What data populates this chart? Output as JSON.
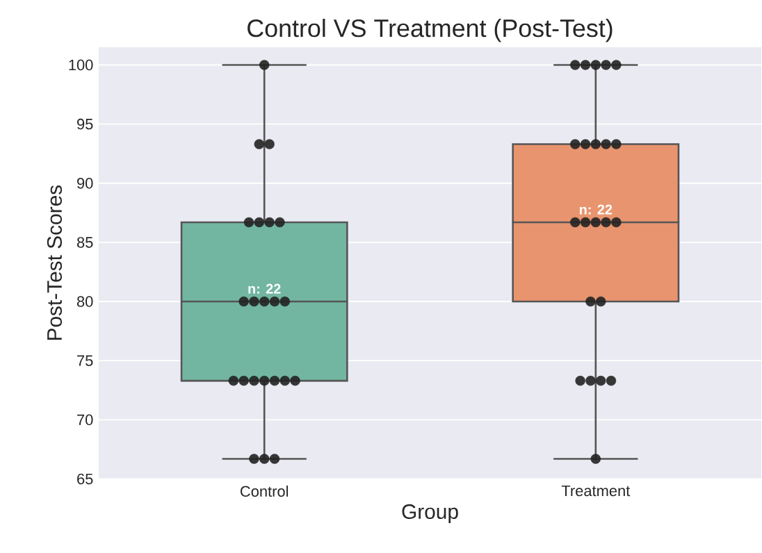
{
  "chart_data": {
    "type": "box",
    "title": "Control VS Treatment (Post-Test)",
    "xlabel": "Group",
    "ylabel": "Post-Test Scores",
    "categories": [
      "Control",
      "Treatment"
    ],
    "colors": [
      "#72b6a1",
      "#e8956f"
    ],
    "boxes": [
      {
        "low": 66.7,
        "q1": 73.3,
        "median": 80,
        "q3": 86.7,
        "high": 100
      },
      {
        "low": 66.7,
        "q1": 80,
        "median": 86.7,
        "q3": 93.3,
        "high": 100
      }
    ],
    "series": [
      {
        "type": "scatter",
        "color": "#222222",
        "x": [
          "Control",
          "Control",
          "Control",
          "Control",
          "Control",
          "Control",
          "Control",
          "Control",
          "Control",
          "Control",
          "Control",
          "Control",
          "Control",
          "Control",
          "Control",
          "Control",
          "Control",
          "Control",
          "Control",
          "Control",
          "Control",
          "Control",
          "Treatment",
          "Treatment",
          "Treatment",
          "Treatment",
          "Treatment",
          "Treatment",
          "Treatment",
          "Treatment",
          "Treatment",
          "Treatment",
          "Treatment",
          "Treatment",
          "Treatment",
          "Treatment",
          "Treatment",
          "Treatment",
          "Treatment",
          "Treatment",
          "Treatment",
          "Treatment",
          "Treatment",
          "Treatment"
        ],
        "values": [
          100,
          93.3,
          93.3,
          86.7,
          86.7,
          86.7,
          86.7,
          80,
          80,
          80,
          80,
          80,
          73.3,
          73.3,
          73.3,
          73.3,
          73.3,
          73.3,
          73.3,
          66.7,
          66.7,
          66.7,
          100,
          100,
          100,
          100,
          100,
          93.3,
          93.3,
          93.3,
          93.3,
          93.3,
          86.7,
          86.7,
          86.7,
          86.7,
          86.7,
          80,
          80,
          73.3,
          73.3,
          73.3,
          73.3,
          66.7
        ]
      }
    ],
    "annotations": [
      "n: 22",
      "n: 22"
    ],
    "ylim": [
      65,
      101.5
    ],
    "yticks": [
      65,
      70,
      75,
      80,
      85,
      90,
      95,
      100
    ],
    "grid": "y",
    "marker": "circle"
  }
}
